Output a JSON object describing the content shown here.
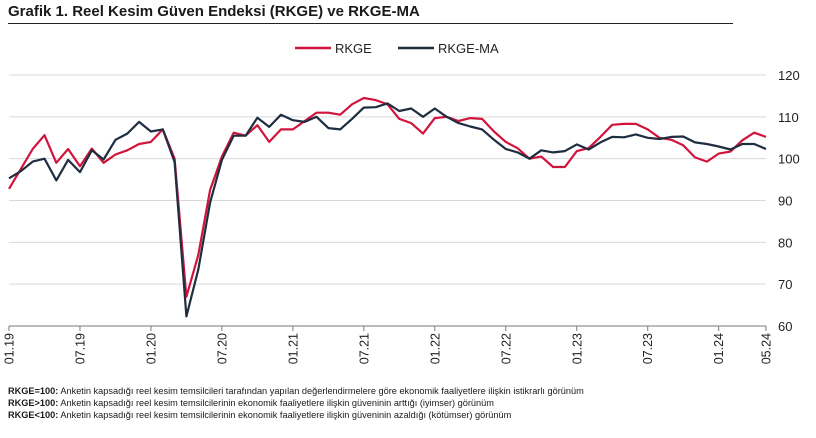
{
  "title": "Grafik 1. Reel Kesim Güven Endeksi (RKGE) ve RKGE-MA",
  "notes": [
    {
      "key": "RKGE=100:",
      "text": " Anketin kapsadığı reel kesim temsilcileri tarafından yapılan değerlendirmelere göre ekonomik faaliyetlere ilişkin istikrarlı görünüm"
    },
    {
      "key": "RKGE>100:",
      "text": " Anketin kapsadığı reel kesim temsilcilerinin ekonomik faaliyetlere ilişkin güveninin arttığı (iyimser) görünüm"
    },
    {
      "key": "RKGE<100:",
      "text": " Anketin kapsadığı reel kesim temsilcilerinin ekonomik faaliyetlere ilişkin güveninin azaldığı (kötümser) görünüm"
    }
  ],
  "chart_data": {
    "type": "line",
    "x_range": [
      "2019-01",
      "2024-05"
    ],
    "xtick_labels": [
      "01.19",
      "07.19",
      "01.20",
      "07.20",
      "01.21",
      "07.21",
      "01.22",
      "07.22",
      "01.23",
      "07.23",
      "01.24",
      "05.24"
    ],
    "ylim": [
      60,
      120
    ],
    "yticks": [
      60,
      70,
      80,
      90,
      100,
      110,
      120
    ],
    "y_axis_side": "right",
    "legend_position": "top-center",
    "grid": "horizontal",
    "series": [
      {
        "name": "RKGE",
        "color": "#d2143c",
        "values": [
          92.8,
          97.5,
          102.3,
          105.6,
          99.0,
          102.3,
          98.2,
          102.4,
          99.0,
          101.0,
          102.0,
          103.5,
          104.0,
          107.0,
          100.0,
          67.0,
          77.0,
          92.5,
          100.5,
          106.2,
          105.5,
          108.0,
          104.0,
          107.0,
          107.0,
          109.0,
          111.0,
          111.0,
          110.5,
          113.0,
          114.5,
          114.0,
          113.0,
          109.5,
          108.5,
          106.0,
          109.7,
          110.0,
          109.0,
          109.7,
          109.5,
          106.5,
          104.0,
          102.5,
          100.0,
          100.5,
          98.0,
          98.0,
          101.8,
          102.5,
          105.2,
          108.1,
          108.3,
          108.3,
          107.0,
          105.0,
          104.5,
          103.2,
          100.3,
          99.3,
          101.2,
          101.7,
          104.4,
          106.2,
          105.2
        ]
      },
      {
        "name": "RKGE-MA",
        "color": "#1e2d3f",
        "values": [
          95.3,
          97.0,
          99.3,
          100.0,
          94.8,
          99.7,
          96.8,
          102.0,
          99.8,
          104.5,
          106.0,
          108.8,
          106.5,
          107.0,
          99.2,
          62.3,
          73.5,
          89.5,
          99.7,
          105.5,
          105.5,
          109.8,
          107.6,
          110.5,
          109.2,
          108.8,
          110.0,
          107.3,
          107.0,
          109.5,
          112.2,
          112.3,
          113.2,
          111.4,
          112.0,
          110.0,
          112.0,
          110.0,
          108.5,
          107.7,
          107.0,
          104.5,
          102.3,
          101.5,
          100.0,
          102.0,
          101.5,
          101.8,
          103.4,
          102.2,
          103.9,
          105.2,
          105.1,
          105.8,
          105.0,
          104.7,
          105.2,
          105.3,
          103.9,
          103.5,
          102.9,
          102.2,
          103.5,
          103.5,
          102.3
        ]
      }
    ]
  }
}
